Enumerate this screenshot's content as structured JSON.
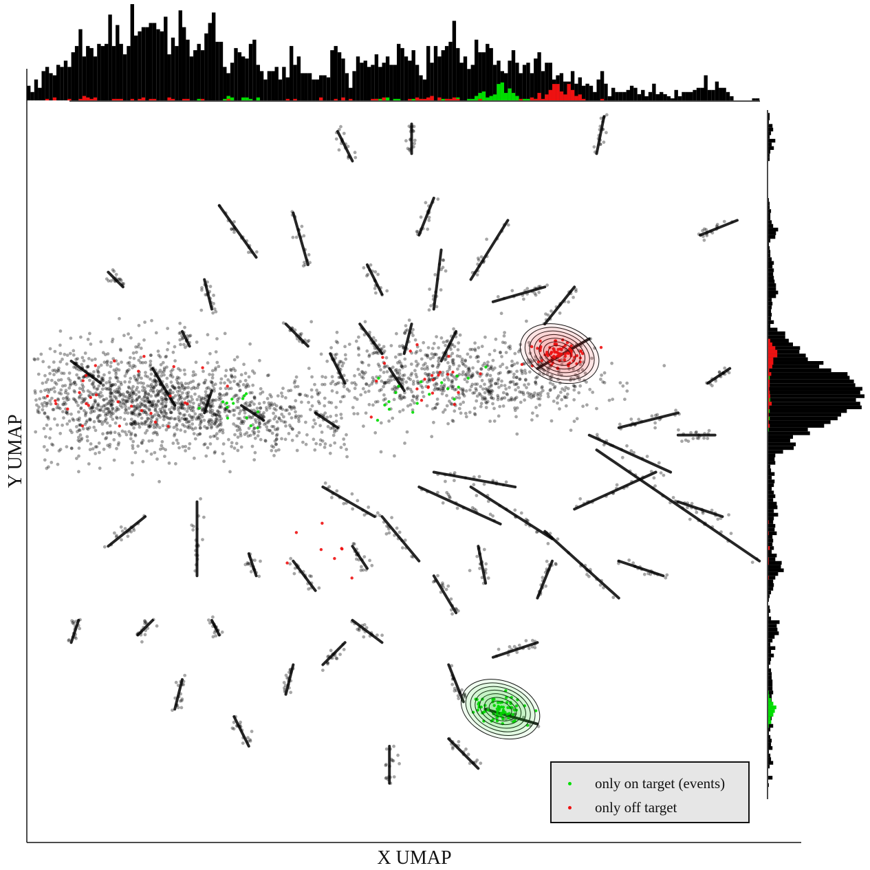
{
  "chart_data": {
    "type": "scatter",
    "xlabel": "X UMAP",
    "ylabel": "Y UMAP",
    "legend": {
      "placement": "bottom-right",
      "entries": [
        {
          "label": "only on target (events)",
          "color": "#00dd00"
        },
        {
          "label": "only off target",
          "color": "#ee1111"
        }
      ]
    },
    "colors": {
      "background_points": "#000000",
      "on_target": "#00dd00",
      "off_target": "#ee1111"
    },
    "marginals": {
      "top": "histogram of X UMAP",
      "right": "histogram of Y UMAP"
    },
    "density_contours": [
      {
        "series": "only off target",
        "center": [
          0.72,
          0.66
        ]
      },
      {
        "series": "only on target (events)",
        "center": [
          0.64,
          0.18
        ]
      }
    ],
    "series": [
      {
        "name": "background",
        "clusters": [
          {
            "x": 0.12,
            "y": 0.6,
            "spread": 0.065,
            "n": 900
          },
          {
            "x": 0.2,
            "y": 0.59,
            "spread": 0.045,
            "n": 420
          },
          {
            "x": 0.33,
            "y": 0.57,
            "spread": 0.045,
            "n": 260
          },
          {
            "x": 0.53,
            "y": 0.63,
            "spread": 0.05,
            "n": 420
          },
          {
            "x": 0.66,
            "y": 0.62,
            "spread": 0.045,
            "n": 320
          }
        ],
        "segments": [
          [
            0.42,
            0.96,
            0.44,
            0.92
          ],
          [
            0.52,
            0.97,
            0.52,
            0.93
          ],
          [
            0.78,
            0.98,
            0.77,
            0.93
          ],
          [
            0.55,
            0.87,
            0.53,
            0.82
          ],
          [
            0.26,
            0.86,
            0.31,
            0.79
          ],
          [
            0.36,
            0.85,
            0.38,
            0.78
          ],
          [
            0.65,
            0.84,
            0.6,
            0.76
          ],
          [
            0.91,
            0.82,
            0.96,
            0.84
          ],
          [
            0.11,
            0.77,
            0.13,
            0.75
          ],
          [
            0.24,
            0.76,
            0.25,
            0.72
          ],
          [
            0.46,
            0.78,
            0.48,
            0.74
          ],
          [
            0.56,
            0.8,
            0.55,
            0.72
          ],
          [
            0.63,
            0.73,
            0.7,
            0.75
          ],
          [
            0.7,
            0.7,
            0.74,
            0.75
          ],
          [
            0.21,
            0.69,
            0.22,
            0.67
          ],
          [
            0.35,
            0.7,
            0.38,
            0.67
          ],
          [
            0.45,
            0.7,
            0.48,
            0.66
          ],
          [
            0.52,
            0.7,
            0.51,
            0.66
          ],
          [
            0.69,
            0.64,
            0.76,
            0.68
          ],
          [
            0.56,
            0.65,
            0.58,
            0.69
          ],
          [
            0.41,
            0.66,
            0.43,
            0.62
          ],
          [
            0.49,
            0.64,
            0.51,
            0.61
          ],
          [
            0.06,
            0.65,
            0.1,
            0.62
          ],
          [
            0.17,
            0.64,
            0.2,
            0.59
          ],
          [
            0.29,
            0.59,
            0.32,
            0.57
          ],
          [
            0.39,
            0.58,
            0.42,
            0.56
          ],
          [
            0.25,
            0.61,
            0.24,
            0.58
          ],
          [
            0.8,
            0.56,
            0.88,
            0.58
          ],
          [
            0.92,
            0.62,
            0.95,
            0.64
          ],
          [
            0.88,
            0.55,
            0.93,
            0.55
          ],
          [
            0.88,
            0.46,
            0.94,
            0.44
          ],
          [
            0.74,
            0.45,
            0.85,
            0.5
          ],
          [
            0.76,
            0.55,
            0.87,
            0.5
          ],
          [
            0.77,
            0.53,
            0.99,
            0.38
          ],
          [
            0.6,
            0.48,
            0.71,
            0.41
          ],
          [
            0.53,
            0.48,
            0.64,
            0.43
          ],
          [
            0.55,
            0.5,
            0.66,
            0.48
          ],
          [
            0.4,
            0.48,
            0.47,
            0.44
          ],
          [
            0.48,
            0.44,
            0.53,
            0.38
          ],
          [
            0.61,
            0.4,
            0.62,
            0.35
          ],
          [
            0.7,
            0.42,
            0.8,
            0.33
          ],
          [
            0.8,
            0.38,
            0.86,
            0.36
          ],
          [
            0.11,
            0.4,
            0.16,
            0.44
          ],
          [
            0.23,
            0.36,
            0.23,
            0.46
          ],
          [
            0.3,
            0.39,
            0.31,
            0.36
          ],
          [
            0.36,
            0.38,
            0.39,
            0.34
          ],
          [
            0.44,
            0.4,
            0.46,
            0.37
          ],
          [
            0.55,
            0.36,
            0.58,
            0.31
          ],
          [
            0.69,
            0.33,
            0.71,
            0.38
          ],
          [
            0.06,
            0.27,
            0.07,
            0.3
          ],
          [
            0.15,
            0.28,
            0.17,
            0.3
          ],
          [
            0.26,
            0.28,
            0.25,
            0.3
          ],
          [
            0.44,
            0.3,
            0.48,
            0.27
          ],
          [
            0.4,
            0.24,
            0.43,
            0.27
          ],
          [
            0.63,
            0.25,
            0.69,
            0.27
          ],
          [
            0.62,
            0.18,
            0.69,
            0.16
          ],
          [
            0.2,
            0.18,
            0.21,
            0.22
          ],
          [
            0.28,
            0.17,
            0.3,
            0.13
          ],
          [
            0.35,
            0.2,
            0.36,
            0.24
          ],
          [
            0.59,
            0.19,
            0.57,
            0.24
          ],
          [
            0.49,
            0.08,
            0.49,
            0.13
          ],
          [
            0.57,
            0.14,
            0.61,
            0.1
          ]
        ]
      },
      {
        "name": "only on target (events)",
        "clusters": [
          {
            "x": 0.64,
            "y": 0.18,
            "spread": 0.018,
            "n": 70
          },
          {
            "x": 0.58,
            "y": 0.62,
            "spread": 0.035,
            "n": 12
          },
          {
            "x": 0.27,
            "y": 0.58,
            "spread": 0.03,
            "n": 14
          },
          {
            "x": 0.48,
            "y": 0.6,
            "spread": 0.03,
            "n": 6
          }
        ]
      },
      {
        "name": "only off target",
        "clusters": [
          {
            "x": 0.72,
            "y": 0.66,
            "spread": 0.018,
            "n": 80
          },
          {
            "x": 0.12,
            "y": 0.6,
            "spread": 0.055,
            "n": 30
          },
          {
            "x": 0.55,
            "y": 0.62,
            "spread": 0.04,
            "n": 22
          },
          {
            "x": 0.39,
            "y": 0.38,
            "spread": 0.04,
            "n": 8
          }
        ]
      }
    ]
  }
}
